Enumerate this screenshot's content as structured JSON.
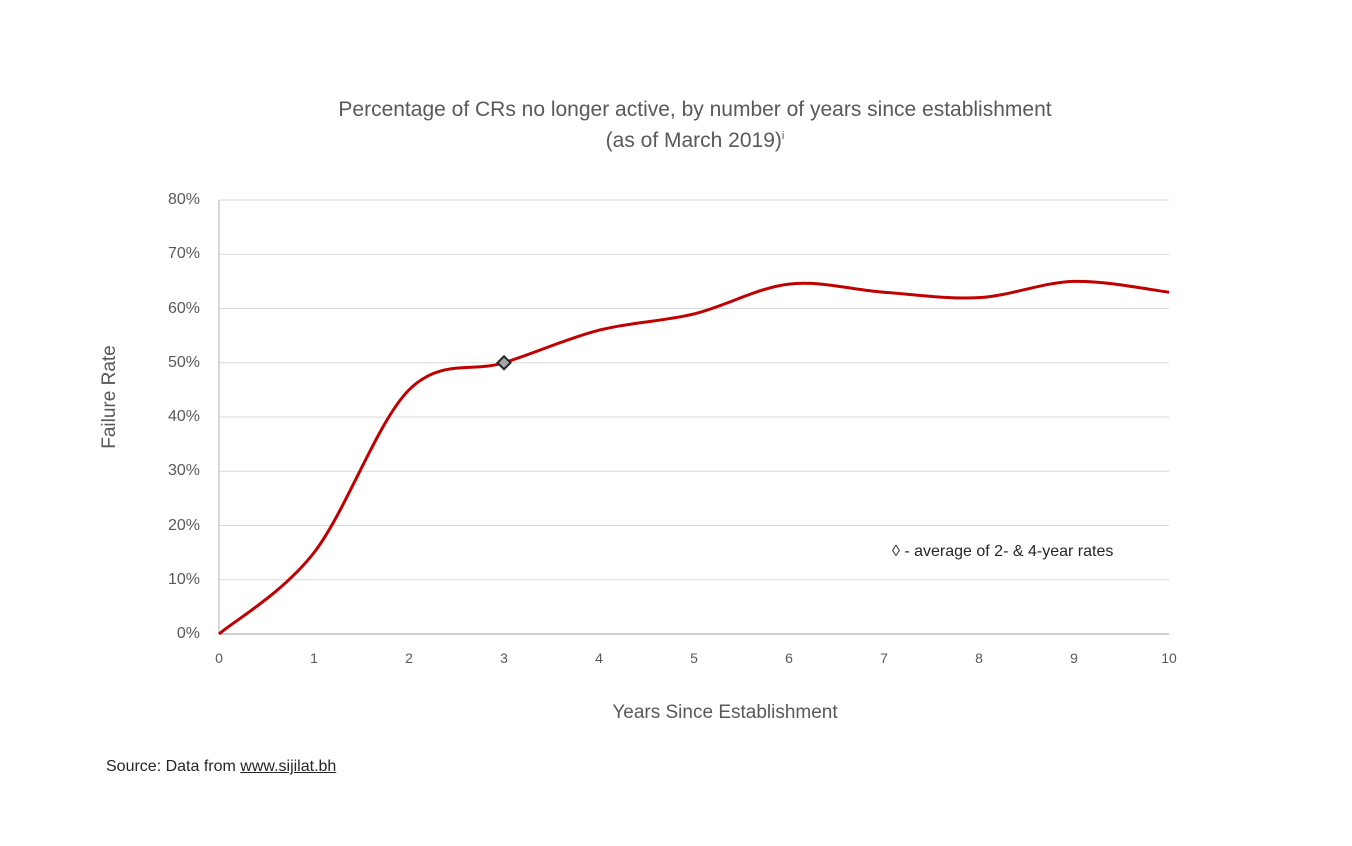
{
  "chart_data": {
    "type": "line",
    "title_line1": "Percentage of CRs no longer active, by number of years since establishment",
    "title_line2": "(as of March 2019)",
    "title_superscript": "i",
    "xlabel": "Years Since Establishment",
    "ylabel": "Failure Rate",
    "x": [
      0,
      1,
      2,
      3,
      4,
      5,
      6,
      7,
      8,
      9,
      10
    ],
    "y": [
      0,
      15,
      45,
      50,
      56,
      59,
      64.5,
      63,
      62,
      65,
      63
    ],
    "y_unit": "%",
    "xlim": [
      0,
      10
    ],
    "ylim": [
      0,
      80
    ],
    "x_ticks": [
      "0",
      "1",
      "2",
      "3",
      "4",
      "5",
      "6",
      "7",
      "8",
      "9",
      "10"
    ],
    "y_ticks": [
      "0%",
      "10%",
      "20%",
      "30%",
      "40%",
      "50%",
      "60%",
      "70%",
      "80%"
    ],
    "y_tick_values": [
      0,
      10,
      20,
      30,
      40,
      50,
      60,
      70,
      80
    ],
    "grid": true,
    "line_color": "#c00000",
    "marker": {
      "x": 3,
      "y": 50,
      "shape": "diamond"
    },
    "annotation": "◊ - average of 2- & 4-year rates",
    "source_prefix": "Source: Data from ",
    "source_link": "www.sijilat.bh"
  }
}
